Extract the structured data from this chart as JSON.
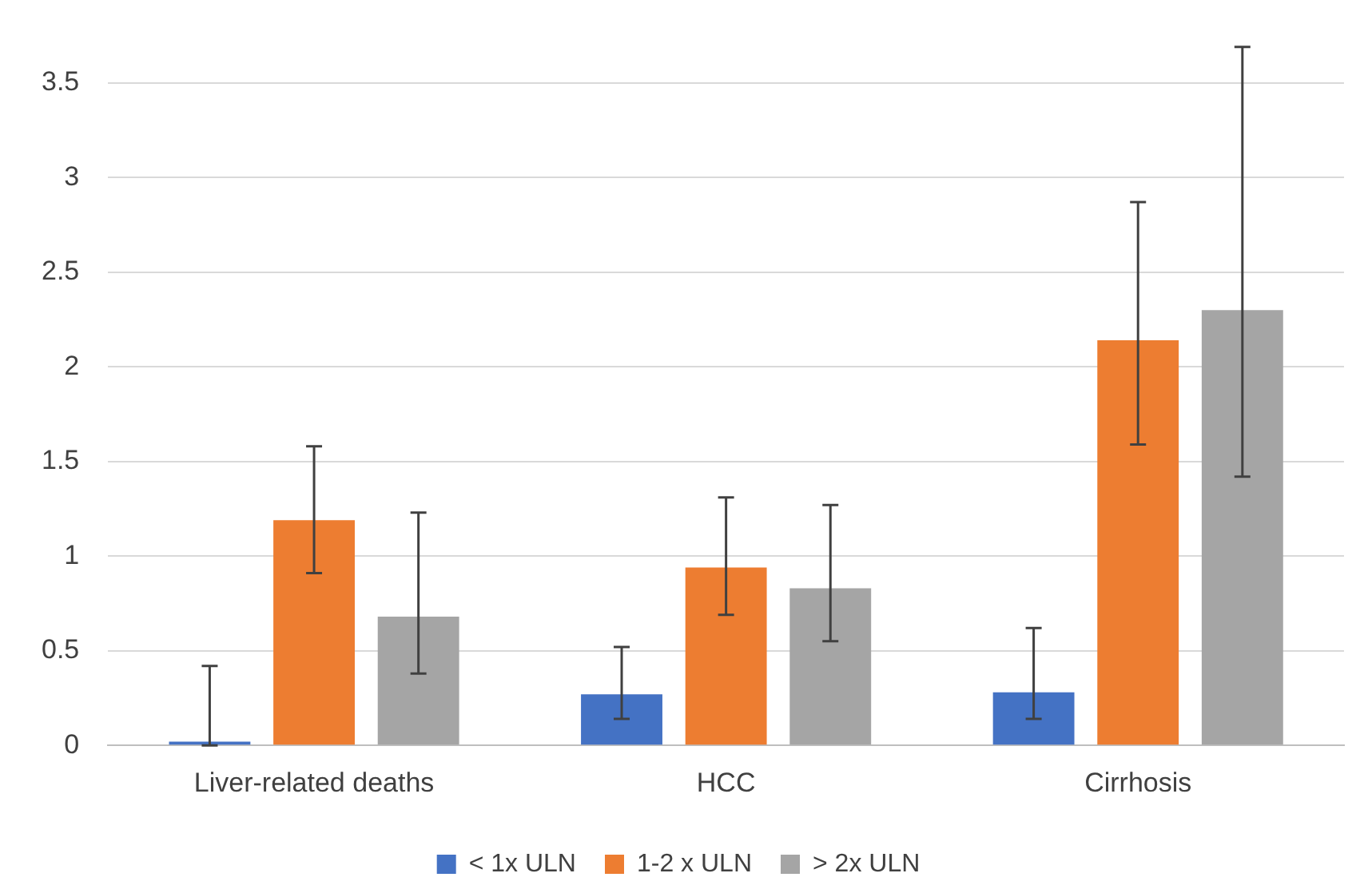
{
  "chart_data": {
    "type": "bar",
    "categories": [
      "Liver-related deaths",
      "HCC",
      "Cirrhosis"
    ],
    "series": [
      {
        "name": "< 1x ULN",
        "color": "#4472c4",
        "values": [
          0.02,
          0.27,
          0.28
        ],
        "errors": [
          [
            0,
            0.42
          ],
          [
            0.14,
            0.52
          ],
          [
            0.14,
            0.62
          ]
        ]
      },
      {
        "name": "1-2 x ULN",
        "color": "#ed7d31",
        "values": [
          1.19,
          0.94,
          2.14
        ],
        "errors": [
          [
            0.91,
            1.58
          ],
          [
            0.69,
            1.31
          ],
          [
            1.59,
            2.87
          ]
        ]
      },
      {
        "name": "> 2x ULN",
        "color": "#a5a5a5",
        "values": [
          0.68,
          0.83,
          2.3
        ],
        "errors": [
          [
            0.38,
            1.23
          ],
          [
            0.55,
            1.27
          ],
          [
            1.42,
            3.69
          ]
        ]
      }
    ],
    "ylim": [
      0,
      3.7
    ],
    "yticks": [
      0,
      0.5,
      1,
      1.5,
      2,
      2.5,
      3,
      3.5
    ],
    "grid": "y",
    "legend": "bottom"
  }
}
